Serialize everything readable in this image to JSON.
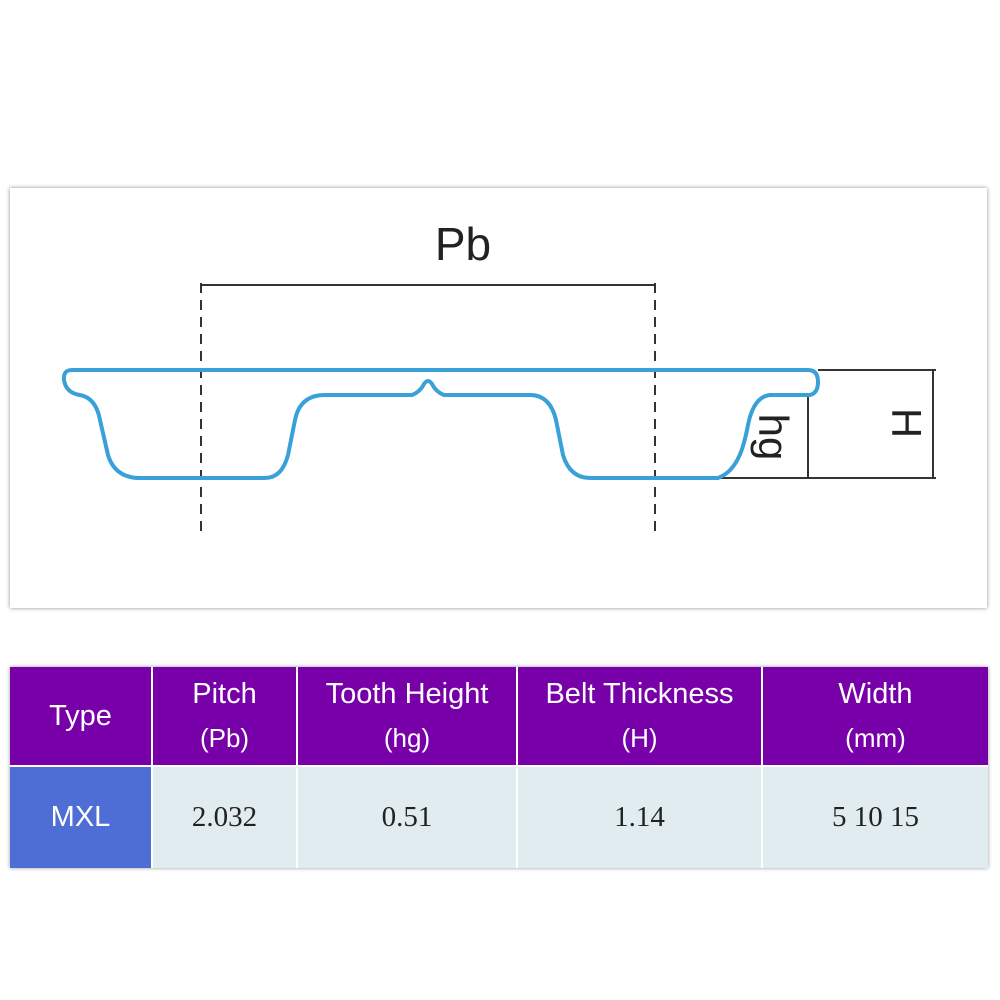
{
  "diagram": {
    "labels": {
      "pitch": "Pb",
      "tooth_height": "hg",
      "thickness": "H"
    }
  },
  "table": {
    "header": [
      {
        "title": "Type"
      },
      {
        "title": "Pitch",
        "unit": "(Pb)"
      },
      {
        "title": "Tooth Height",
        "unit": "(hg)"
      },
      {
        "title": "Belt Thickness",
        "unit": "(H)"
      },
      {
        "title": "Width",
        "unit": "(mm)"
      }
    ],
    "rows": [
      [
        "MXL",
        "2.032",
        "0.51",
        "1.14",
        "5 10 15"
      ]
    ]
  }
}
